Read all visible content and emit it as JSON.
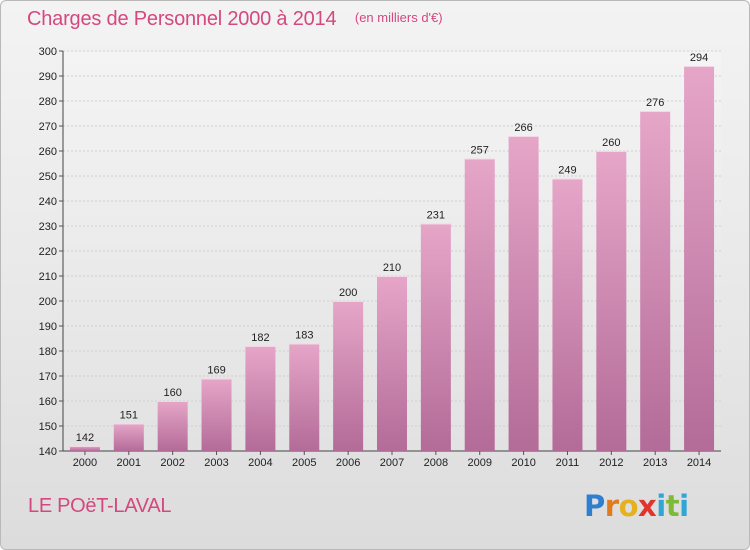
{
  "header": {
    "title": "Charges de Personnel 2000 à 2014",
    "subtitle": "(en milliers d'€)"
  },
  "commune": "LE POëT-LAVAL",
  "brand": {
    "letters": [
      {
        "char": "P",
        "color": "#2f7fd0"
      },
      {
        "char": "r",
        "color": "#e07b1f"
      },
      {
        "char": "o",
        "color": "#e6b11e"
      },
      {
        "char": "x",
        "color": "#e0342c"
      },
      {
        "char": "i",
        "color": "#2fa6d6"
      },
      {
        "char": "t",
        "color": "#7fb93a"
      },
      {
        "char": "i",
        "color": "#2fa6d6"
      }
    ]
  },
  "colors": {
    "bar_top": "#e6a6c8",
    "bar_bottom": "#b36b98",
    "accent": "#d4487f",
    "grid": "#cfcfcf"
  },
  "chart_data": {
    "type": "bar",
    "title": "Charges de Personnel 2000 à 2014",
    "subtitle": "(en milliers d'€)",
    "categories": [
      "2000",
      "2001",
      "2002",
      "2003",
      "2004",
      "2005",
      "2006",
      "2007",
      "2008",
      "2009",
      "2010",
      "2011",
      "2012",
      "2013",
      "2014"
    ],
    "values": [
      142,
      151,
      160,
      169,
      182,
      183,
      200,
      210,
      231,
      257,
      266,
      249,
      260,
      276,
      294
    ],
    "ylim": [
      140,
      300
    ],
    "yticks": [
      140,
      150,
      160,
      170,
      180,
      190,
      200,
      210,
      220,
      230,
      240,
      250,
      260,
      270,
      280,
      290,
      300
    ],
    "grid": true,
    "legend": "none"
  }
}
